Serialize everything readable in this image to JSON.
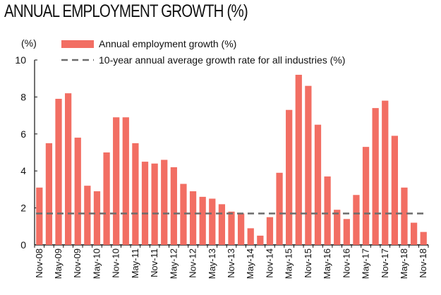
{
  "chart_data": {
    "type": "bar",
    "title": "ANNUAL EMPLOYMENT GROWTH (%)",
    "ylabel": "(%)",
    "ylim": [
      0,
      10
    ],
    "yticks": [
      0,
      2,
      4,
      6,
      8,
      10
    ],
    "grid": false,
    "legend_position": "top",
    "tick_labels": [
      "Nov-08",
      "May-09",
      "Nov-09",
      "May-10",
      "Nov-10",
      "May-11",
      "Nov-11",
      "May-12",
      "Nov-12",
      "May-13",
      "Nov-13",
      "May-14",
      "Nov-14",
      "May-15",
      "Nov-15",
      "May-16",
      "Nov-16",
      "May-17",
      "Nov-17",
      "May-18",
      "Nov-18"
    ],
    "series": [
      {
        "name": "Annual employment growth (%)",
        "type": "bar",
        "color": "#f26e63",
        "values": [
          3.1,
          5.5,
          7.9,
          8.2,
          5.8,
          3.2,
          2.9,
          5.0,
          6.9,
          6.9,
          5.5,
          4.5,
          4.4,
          4.6,
          4.2,
          3.3,
          2.9,
          2.6,
          2.5,
          2.2,
          1.8,
          1.7,
          0.9,
          0.5,
          1.5,
          3.9,
          7.3,
          9.2,
          8.6,
          6.5,
          3.7,
          1.9,
          1.4,
          2.7,
          5.3,
          7.4,
          7.8,
          5.9,
          3.1,
          1.2,
          0.7
        ]
      },
      {
        "name": "10-year annual average growth rate for all industries (%)",
        "type": "line",
        "style": "dashed",
        "color": "#6d6d6d",
        "value": 1.7
      }
    ]
  }
}
